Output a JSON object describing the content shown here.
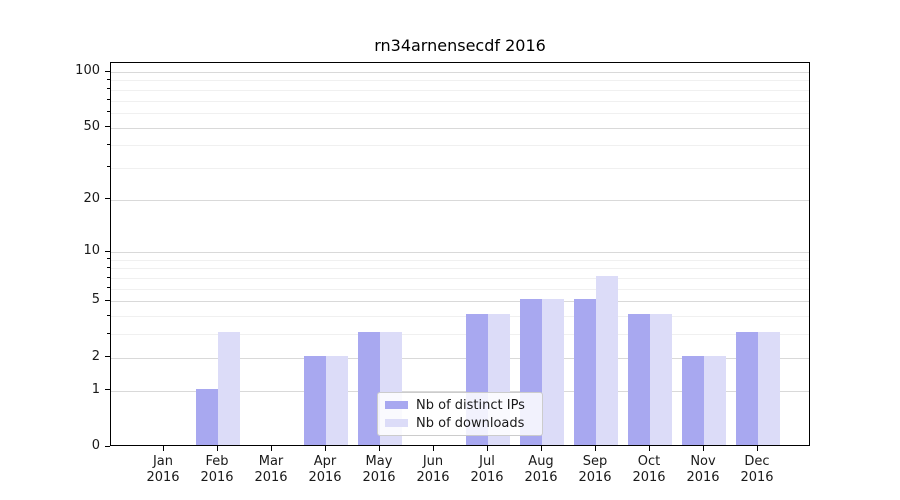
{
  "title": "rn34arnensecdf 2016",
  "colors": {
    "distinct_ips": "#a8a8f0",
    "downloads": "#dcdcf8",
    "grid_major": "#d9d9d9",
    "grid_minor": "#f0f0f0",
    "axis": "#000000",
    "text": "#1a1a1a",
    "legend_bg": "rgba(255,255,255,0.85)",
    "legend_border": "#cccccc"
  },
  "chart_data": {
    "type": "bar",
    "title": "rn34arnensecdf 2016",
    "xlabel": "",
    "ylabel": "",
    "y_scale": "log1p",
    "ylim": [
      0,
      112
    ],
    "grid": true,
    "categories": [
      "Jan 2016",
      "Feb 2016",
      "Mar 2016",
      "Apr 2016",
      "May 2016",
      "Jun 2016",
      "Jul 2016",
      "Aug 2016",
      "Sep 2016",
      "Oct 2016",
      "Nov 2016",
      "Dec 2016"
    ],
    "series": [
      {
        "name": "Nb of distinct IPs",
        "color_key": "distinct_ips",
        "values": [
          0,
          1,
          0,
          2,
          3,
          0,
          4,
          5,
          5,
          4,
          2,
          3
        ]
      },
      {
        "name": "Nb of downloads",
        "color_key": "downloads",
        "values": [
          0,
          3,
          0,
          2,
          3,
          0,
          4,
          5,
          7,
          4,
          2,
          3
        ]
      }
    ],
    "y_major_ticks": [
      0,
      1,
      2,
      5,
      10,
      20,
      50,
      100
    ],
    "y_minor_ticks": [
      3,
      4,
      6,
      7,
      8,
      9,
      30,
      40,
      60,
      70,
      80,
      90
    ],
    "legend": {
      "position": "lower-center",
      "entries": [
        "Nb of distinct IPs",
        "Nb of downloads"
      ]
    }
  }
}
